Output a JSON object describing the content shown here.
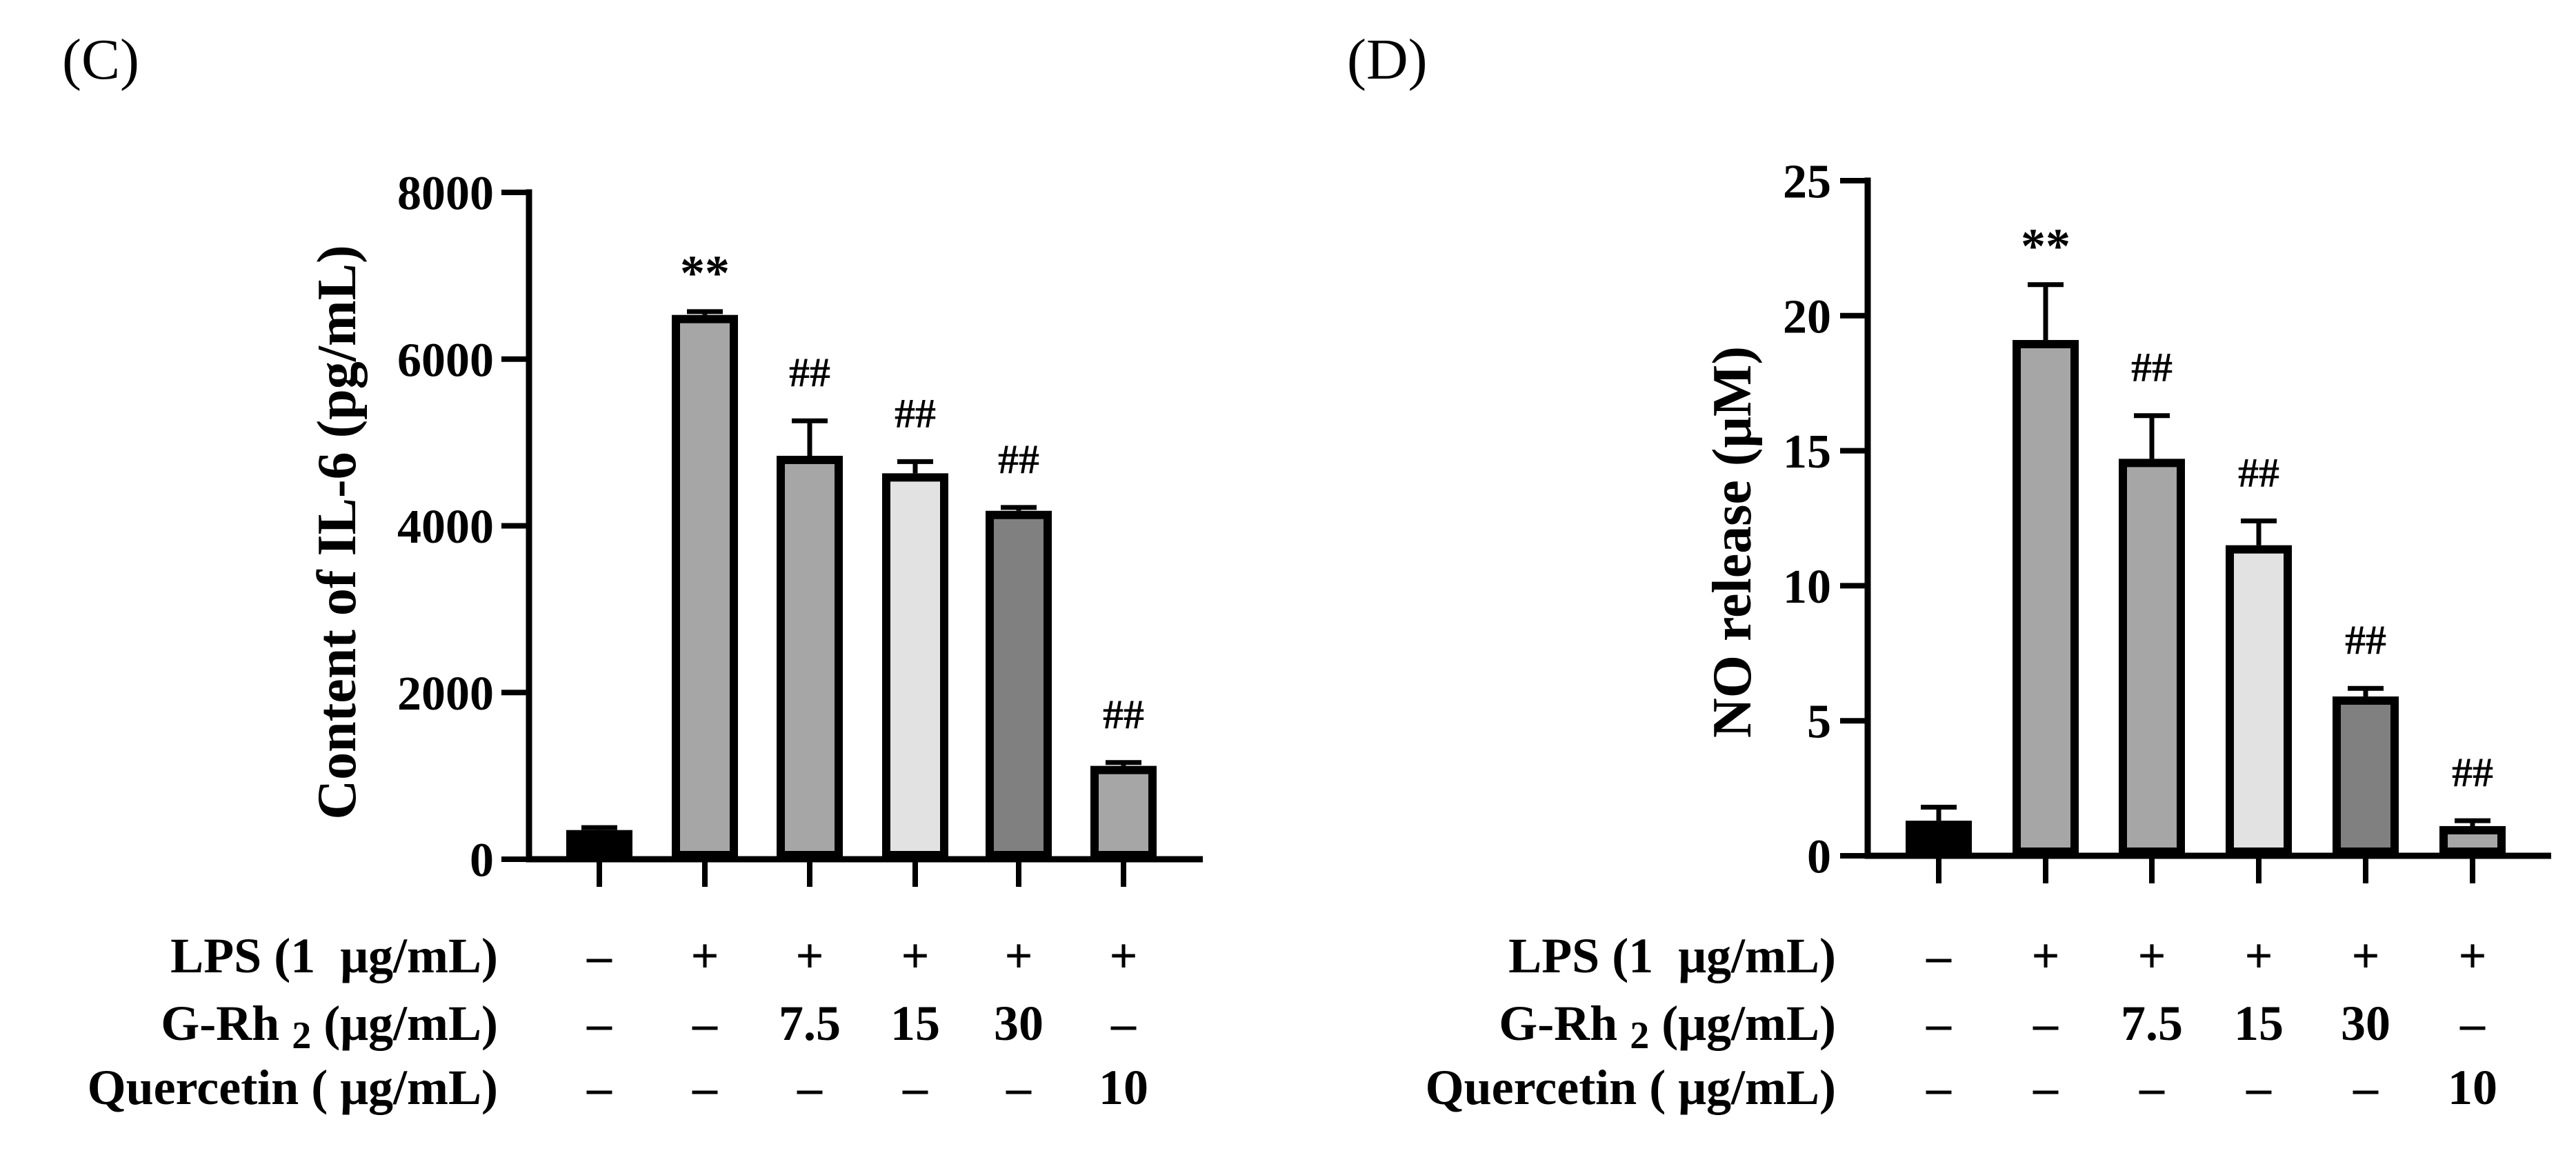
{
  "chart_data": [
    {
      "type": "bar",
      "panel_label": "(C)",
      "ylabel": "Content of IL-6 (pg/mL)",
      "ylim": [
        0,
        8000
      ],
      "yticks": [
        0,
        2000,
        4000,
        6000,
        8000
      ],
      "values": [
        350,
        6530,
        4840,
        4630,
        4180,
        1120
      ],
      "errors": [
        30,
        40,
        420,
        140,
        40,
        40
      ],
      "annotations": [
        null,
        "**",
        "##",
        "##",
        "##",
        "##"
      ],
      "bar_colors": [
        "#000000",
        "#a6a6a6",
        "#a6a6a6",
        "#e2e2e2",
        "#808080",
        "#a6a6a6"
      ],
      "condition_table": [
        {
          "label": [
            {
              "text": "LPS (1  μg/mL)"
            }
          ],
          "values": [
            "–",
            "+",
            "+",
            "+",
            "+",
            "+"
          ]
        },
        {
          "label": [
            {
              "text": "G-Rh "
            },
            {
              "text": "2",
              "sub": true
            },
            {
              "text": " (μg/mL)"
            }
          ],
          "values": [
            "–",
            "–",
            "7.5",
            "15",
            "30",
            "–"
          ]
        },
        {
          "label": [
            {
              "text": "Quercetin ( μg/mL)"
            }
          ],
          "values": [
            "–",
            "–",
            "–",
            "–",
            "–",
            "10"
          ]
        }
      ]
    },
    {
      "type": "bar",
      "panel_label": "(D)",
      "ylabel": "NO release (μM)",
      "ylim": [
        0,
        25
      ],
      "yticks": [
        0,
        5,
        10,
        15,
        20,
        25
      ],
      "values": [
        1.3,
        19.1,
        14.7,
        11.5,
        5.9,
        1.1
      ],
      "errors": [
        0.5,
        2.05,
        1.6,
        0.9,
        0.3,
        0.2
      ],
      "annotations": [
        null,
        "**",
        "##",
        "##",
        "##",
        "##"
      ],
      "bar_colors": [
        "#000000",
        "#a6a6a6",
        "#a6a6a6",
        "#e2e2e2",
        "#808080",
        "#a6a6a6"
      ],
      "condition_table": [
        {
          "label": [
            {
              "text": "LPS (1  μg/mL)"
            }
          ],
          "values": [
            "–",
            "+",
            "+",
            "+",
            "+",
            "+"
          ]
        },
        {
          "label": [
            {
              "text": "G-Rh "
            },
            {
              "text": "2",
              "sub": true
            },
            {
              "text": " (μg/mL)"
            }
          ],
          "values": [
            "–",
            "–",
            "7.5",
            "15",
            "30",
            "–"
          ]
        },
        {
          "label": [
            {
              "text": "Quercetin ( μg/mL)"
            }
          ],
          "values": [
            "–",
            "–",
            "–",
            "–",
            "–",
            "10"
          ]
        }
      ]
    }
  ]
}
